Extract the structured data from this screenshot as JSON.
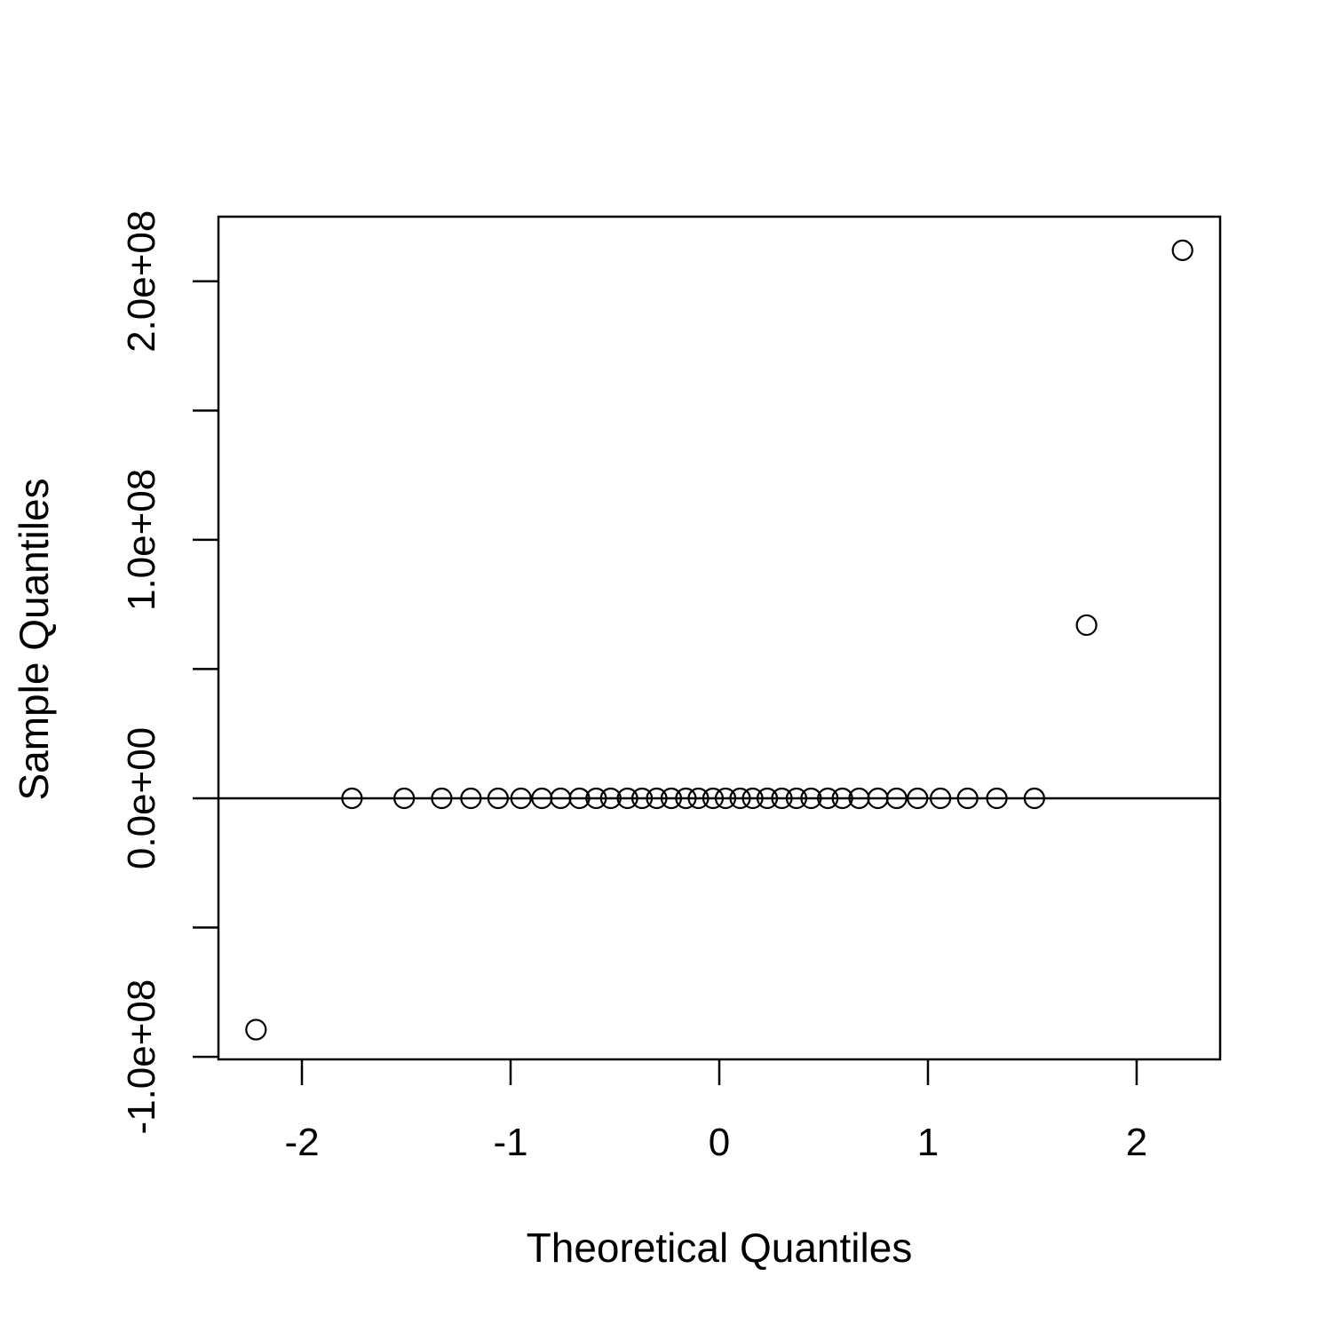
{
  "chart_data": {
    "type": "scatter",
    "title": "",
    "xlabel": "Theoretical Quantiles",
    "ylabel": "Sample Quantiles",
    "xlim": [
      -2.4,
      2.4
    ],
    "ylim": [
      -101000000,
      225000000
    ],
    "x_ticks": [
      -2,
      -1,
      0,
      1,
      2
    ],
    "x_tick_labels": [
      "-2",
      "-1",
      "0",
      "1",
      "2"
    ],
    "y_ticks": [
      -100000000,
      -50000000,
      0,
      50000000,
      100000000,
      150000000,
      200000000
    ],
    "y_tick_labels": [
      "-1.0e+08",
      "",
      "0.0e+00",
      "",
      "1.0e+08",
      "",
      "2.0e+08"
    ],
    "reference_line": {
      "orientation": "horizontal",
      "y": 0
    },
    "grid": false,
    "legend": null,
    "points": [
      {
        "x": -2.22,
        "y": -89500000
      },
      {
        "x": -1.76,
        "y": 0
      },
      {
        "x": -1.51,
        "y": 0
      },
      {
        "x": -1.33,
        "y": 0
      },
      {
        "x": -1.19,
        "y": 0
      },
      {
        "x": -1.06,
        "y": 0
      },
      {
        "x": -0.95,
        "y": 0
      },
      {
        "x": -0.85,
        "y": 0
      },
      {
        "x": -0.76,
        "y": 0
      },
      {
        "x": -0.67,
        "y": 0
      },
      {
        "x": -0.59,
        "y": 0
      },
      {
        "x": -0.52,
        "y": 0
      },
      {
        "x": -0.44,
        "y": 0
      },
      {
        "x": -0.37,
        "y": 0
      },
      {
        "x": -0.3,
        "y": 0
      },
      {
        "x": -0.23,
        "y": 0
      },
      {
        "x": -0.16,
        "y": 0
      },
      {
        "x": -0.1,
        "y": 0
      },
      {
        "x": -0.03,
        "y": 0
      },
      {
        "x": 0.03,
        "y": 0
      },
      {
        "x": 0.1,
        "y": 0
      },
      {
        "x": 0.16,
        "y": 0
      },
      {
        "x": 0.23,
        "y": 0
      },
      {
        "x": 0.3,
        "y": 0
      },
      {
        "x": 0.37,
        "y": 0
      },
      {
        "x": 0.44,
        "y": 0
      },
      {
        "x": 0.52,
        "y": 0
      },
      {
        "x": 0.59,
        "y": 0
      },
      {
        "x": 0.67,
        "y": 0
      },
      {
        "x": 0.76,
        "y": 0
      },
      {
        "x": 0.85,
        "y": 0
      },
      {
        "x": 0.95,
        "y": 0
      },
      {
        "x": 1.06,
        "y": 0
      },
      {
        "x": 1.19,
        "y": 0
      },
      {
        "x": 1.33,
        "y": 0
      },
      {
        "x": 1.51,
        "y": 0
      },
      {
        "x": 1.76,
        "y": 67000000
      },
      {
        "x": 2.22,
        "y": 212000000
      }
    ]
  }
}
